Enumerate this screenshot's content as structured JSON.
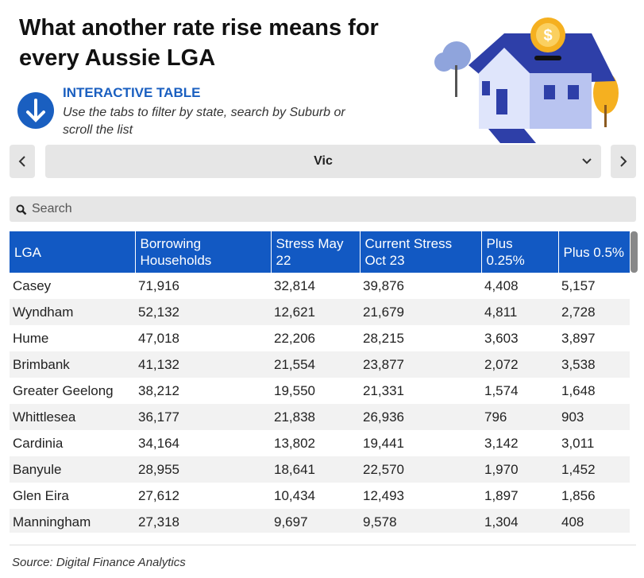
{
  "header": {
    "title": "What another rate rise means for every Aussie LGA",
    "label": "INTERACTIVE TABLE",
    "instructions": "Use the tabs to filter by state, search by Suburb or scroll the list"
  },
  "tabs": {
    "selected": "Vic"
  },
  "search": {
    "placeholder": "Search"
  },
  "table": {
    "columns": [
      "LGA",
      "Borrowing Households",
      "Stress May 22",
      "Current Stress Oct 23",
      "Plus 0.25%",
      "Plus 0.5%"
    ],
    "rows": [
      [
        "Casey",
        "71,916",
        "32,814",
        "39,876",
        "4,408",
        "5,157"
      ],
      [
        "Wyndham",
        "52,132",
        "12,621",
        "21,679",
        "4,811",
        "2,728"
      ],
      [
        "Hume",
        "47,018",
        "22,206",
        "28,215",
        "3,603",
        "3,897"
      ],
      [
        "Brimbank",
        "41,132",
        "21,554",
        "23,877",
        "2,072",
        "3,538"
      ],
      [
        "Greater Geelong",
        "38,212",
        "19,550",
        "21,331",
        "1,574",
        "1,648"
      ],
      [
        "Whittlesea",
        "36,177",
        "21,838",
        "26,936",
        "796",
        "903"
      ],
      [
        "Cardinia",
        "34,164",
        "13,802",
        "19,441",
        "3,142",
        "3,011"
      ],
      [
        "Banyule",
        "28,955",
        "18,641",
        "22,570",
        "1,970",
        "1,452"
      ],
      [
        "Glen Eira",
        "27,612",
        "10,434",
        "12,493",
        "1,897",
        "1,856"
      ],
      [
        "Manningham",
        "27,318",
        "9,697",
        "9,578",
        "1,304",
        "408"
      ]
    ]
  },
  "footer": {
    "source": "Source: Digital Finance Analytics"
  }
}
